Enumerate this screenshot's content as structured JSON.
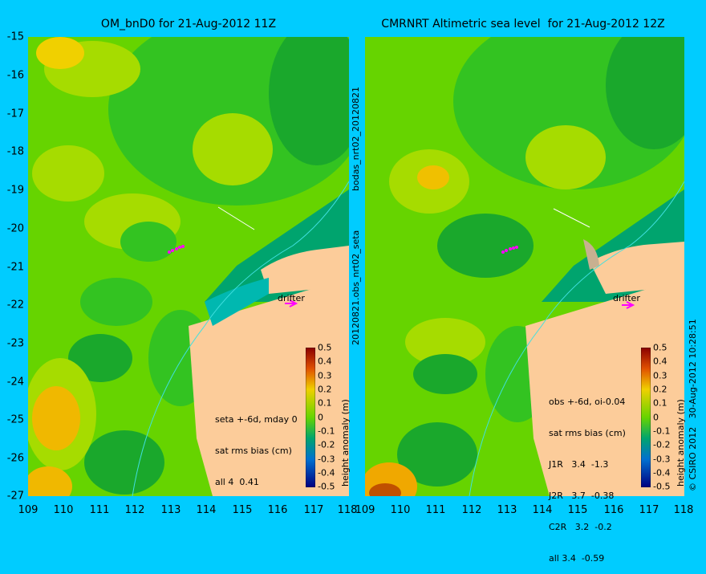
{
  "left_panel": {
    "title": "OM_bnD0 for 21-Aug-2012 11Z",
    "info_lines": [
      "seta +-6d, mday 0",
      "sat rms bias (cm)",
      "all 4  0.41"
    ],
    "drifter_label": "drifter"
  },
  "right_panel": {
    "title": "CMRNRT Altimetric sea level  for 21-Aug-2012 12Z",
    "info_lines": [
      "obs +-6d, oi-0.04",
      "sat rms bias (cm)",
      "J1R   3.4  -1.3",
      "J2R   3.7  -0.38",
      "C2R   3.2  -0.2",
      "all 3.4  -0.59"
    ],
    "drifter_label": "drifter"
  },
  "axes": {
    "y_ticks": [
      "-15",
      "-16",
      "-17",
      "-18",
      "-19",
      "-20",
      "-21",
      "-22",
      "-23",
      "-24",
      "-25",
      "-26",
      "-27"
    ],
    "x_ticks": [
      "109",
      "110",
      "111",
      "112",
      "113",
      "114",
      "115",
      "116",
      "117",
      "118"
    ]
  },
  "colorbar": {
    "label": "height anomaly (m)",
    "ticks": [
      "0.5",
      "0.4",
      "0.3",
      "0.2",
      "0.1",
      "0",
      "-0.1",
      "-0.2",
      "-0.3",
      "-0.4",
      "-0.5"
    ]
  },
  "side_text": {
    "left_of_right_panel": "20120821.obs_nrt02_seta",
    "upper_left_of_right_panel": "bodas_nrt02_20120821",
    "right_edge": "© CSIRO 2012   30-Aug-2012 10:28:51"
  },
  "colors": {
    "background": "#00ccff",
    "land": "#fccc9a",
    "deep_green": "#1aa82c",
    "green": "#33c321",
    "light_green": "#66d400",
    "yellow_green": "#a6dc00",
    "yellow": "#f0f000",
    "orange": "#f0a800",
    "shelf": "#00a46e",
    "drifter": "#ff00ff"
  }
}
